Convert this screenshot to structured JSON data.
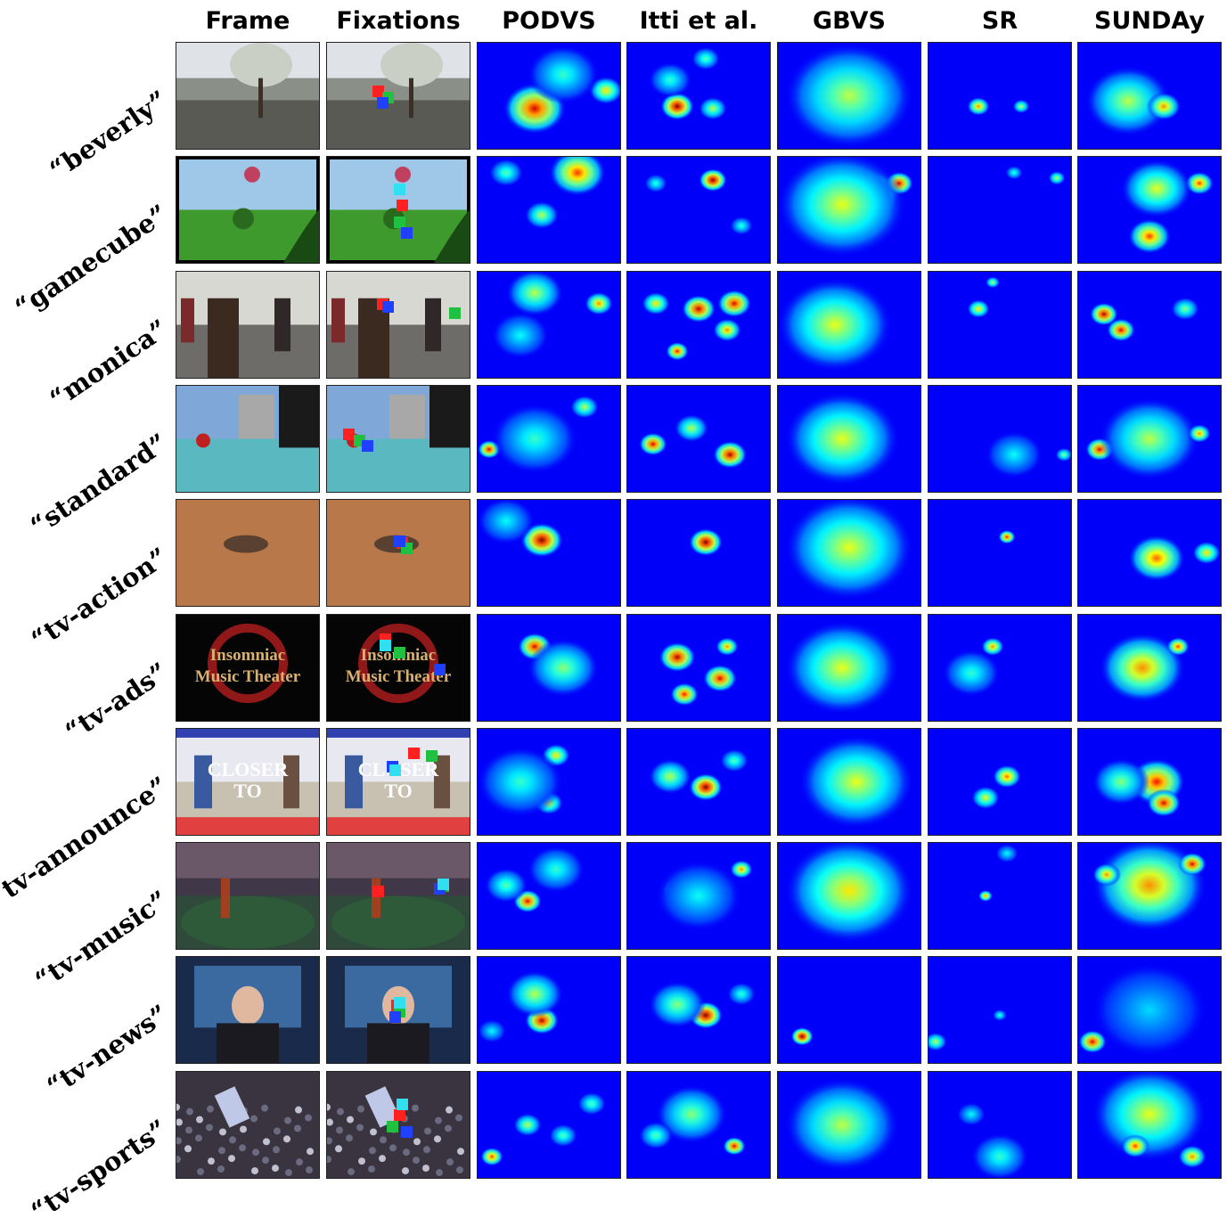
{
  "columns": [
    {
      "key": "frame",
      "label": "Frame"
    },
    {
      "key": "fixations",
      "label": "Fixations"
    },
    {
      "key": "podvs",
      "label": "PODVS"
    },
    {
      "key": "itti",
      "label": "Itti et al."
    },
    {
      "key": "gbvs",
      "label": "GBVS"
    },
    {
      "key": "sr",
      "label": "SR"
    },
    {
      "key": "sunday",
      "label": "SUNDAy"
    }
  ],
  "rows": [
    {
      "label": "“beverly”",
      "scene": "beverly"
    },
    {
      "label": "“gamecube”",
      "scene": "gamecube"
    },
    {
      "label": "“monica”",
      "scene": "monica"
    },
    {
      "label": "“standard”",
      "scene": "standard"
    },
    {
      "label": "“tv-action”",
      "scene": "tv-action"
    },
    {
      "label": "“tv-ads”",
      "scene": "tv-ads"
    },
    {
      "label": "“tv-announce”",
      "scene": "tv-announce"
    },
    {
      "label": "“tv-music”",
      "scene": "tv-music"
    },
    {
      "label": "“tv-news”",
      "scene": "tv-news"
    },
    {
      "label": "“tv-sports”",
      "scene": "tv-sports"
    }
  ],
  "frame_text": {
    "tv-ads": [
      "Insomniac",
      "Music Theater"
    ],
    "tv-announce": [
      "CLOSER",
      "TO"
    ]
  },
  "fixation_colors": [
    "#ff2020",
    "#20c040",
    "#2040ff",
    "#30e0f0"
  ],
  "colormap": "jet"
}
